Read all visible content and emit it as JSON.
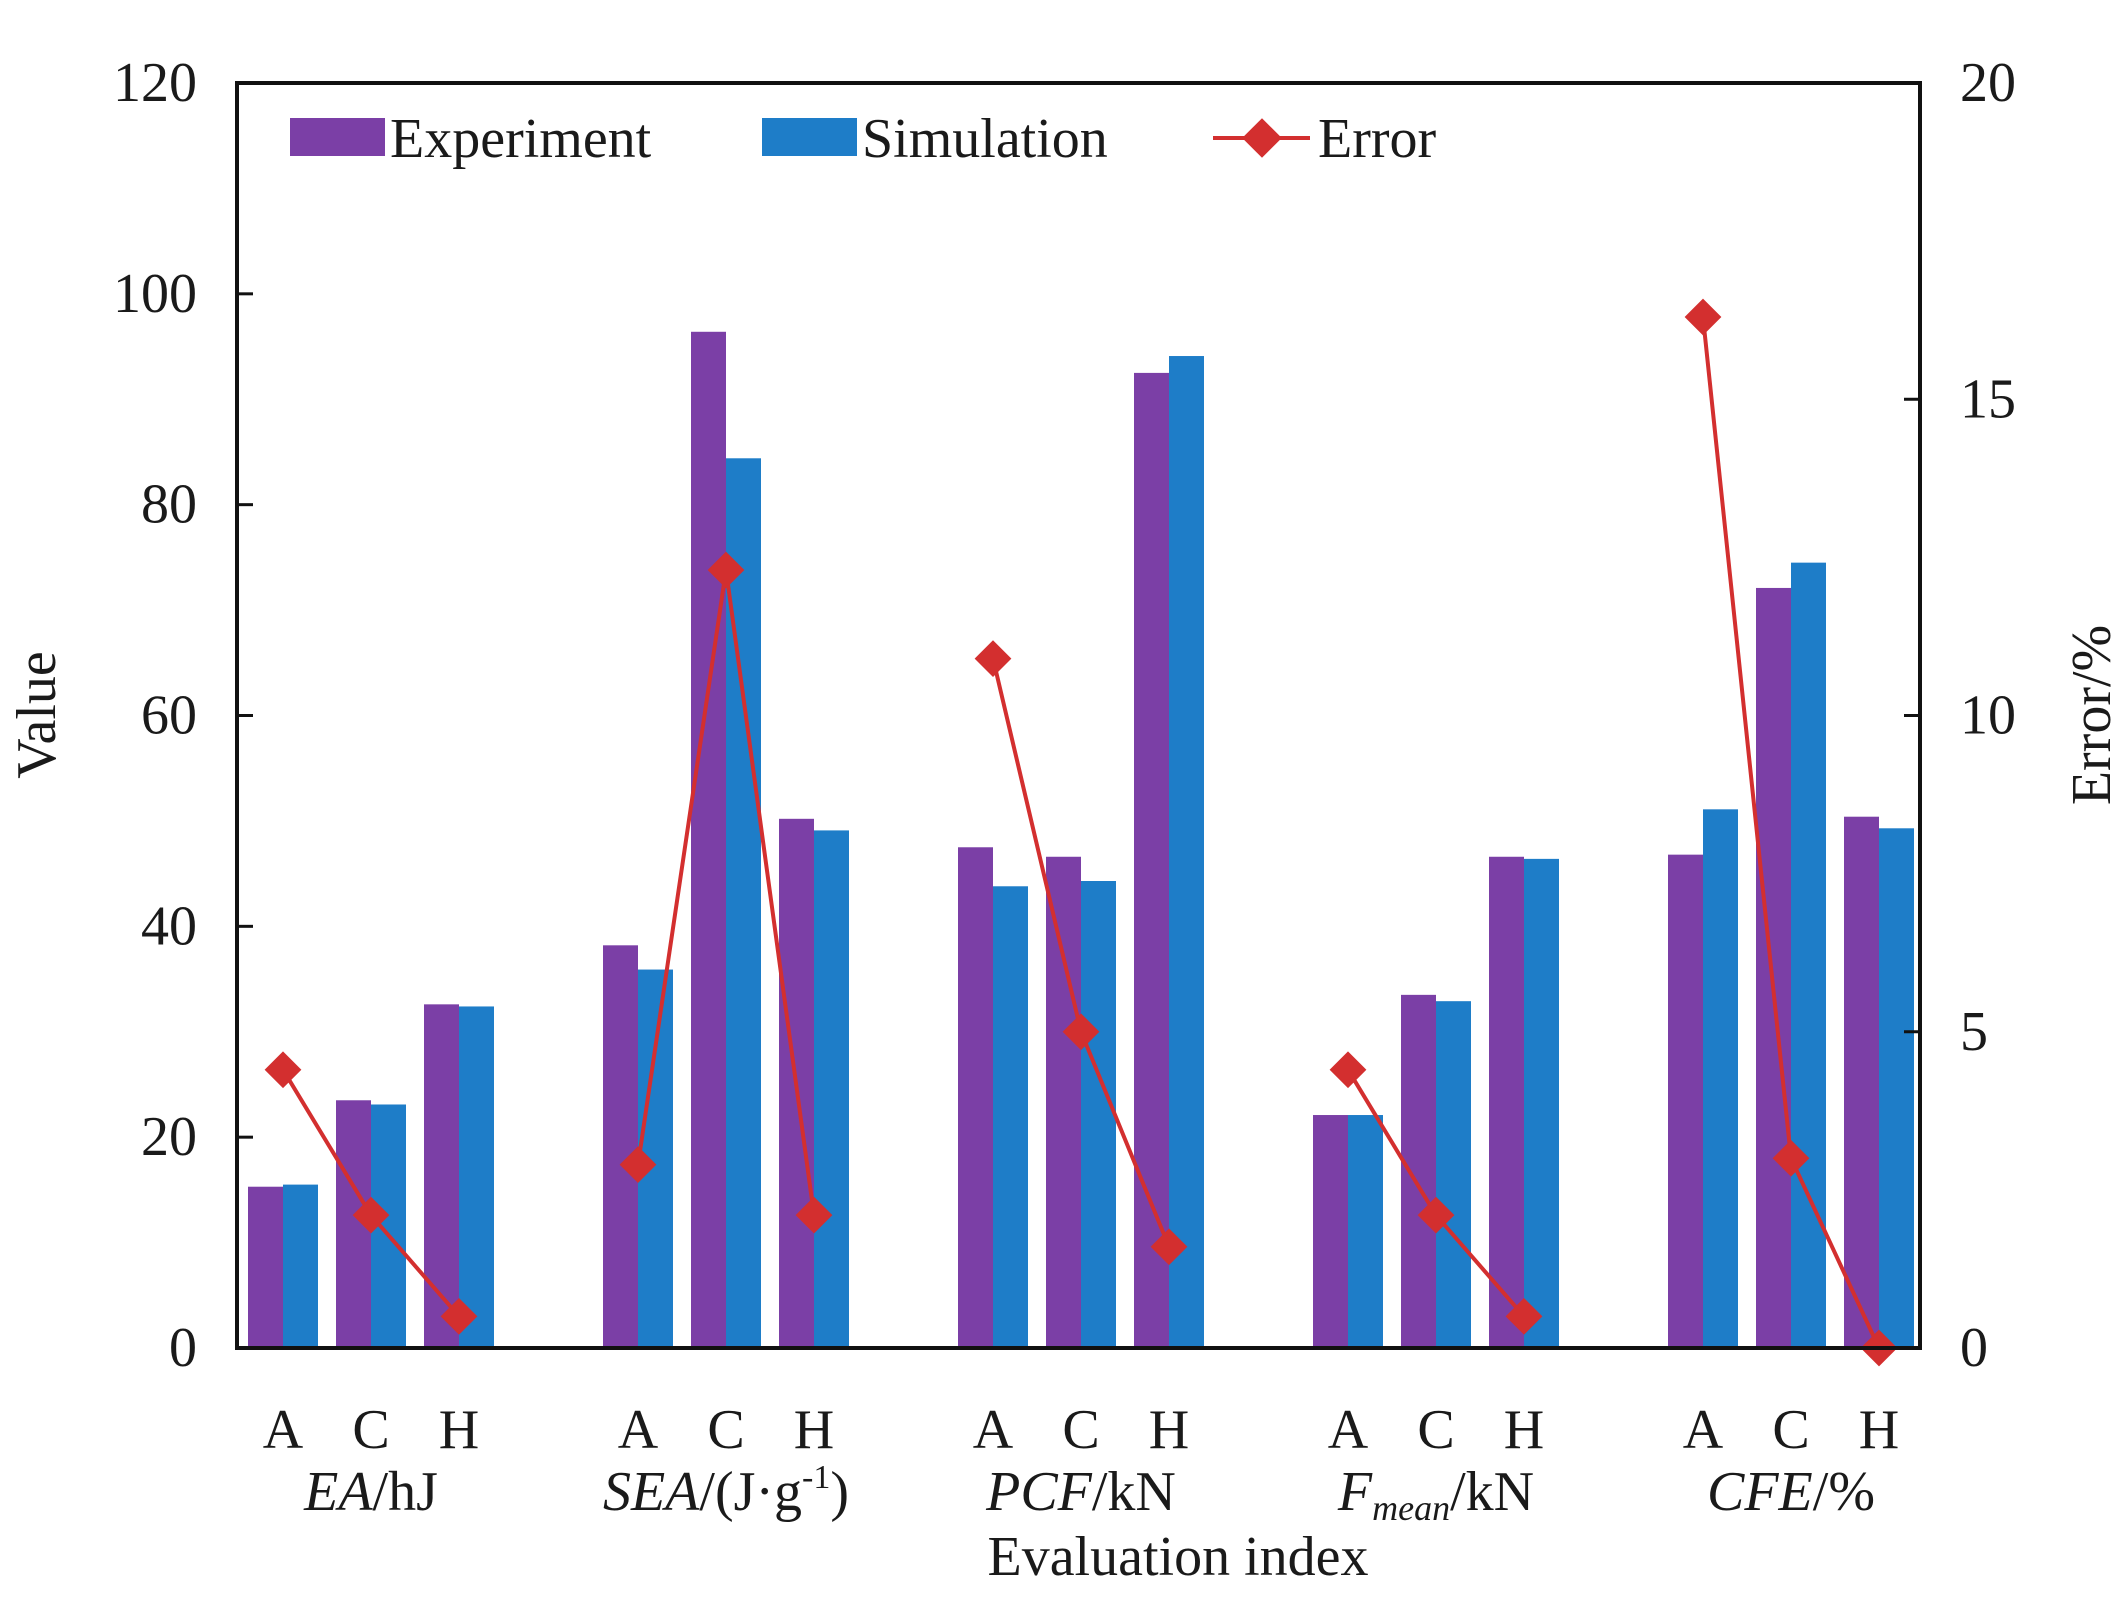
{
  "chart_data": {
    "type": "bar",
    "xlabel": "Evaluation index",
    "ylabel": "Value",
    "y2label": "Error/%",
    "ylim": [
      0,
      120
    ],
    "y2lim": [
      0,
      20
    ],
    "yticks": [
      0,
      20,
      40,
      60,
      80,
      100,
      120
    ],
    "y2ticks": [
      0,
      5,
      10,
      15,
      20
    ],
    "legend_position": "top",
    "legend": [
      "Experiment",
      "Simulation",
      "Error"
    ],
    "colors": {
      "Experiment": "#7B3FA6",
      "Simulation": "#1E7DC8",
      "Error": "#D32F2F"
    },
    "groups": [
      {
        "label_main": "EA",
        "label_suffix": "/hJ",
        "label_sub": "",
        "label_sup": "",
        "label_tail": "",
        "categories": [
          "A",
          "C",
          "H"
        ],
        "experiment": [
          15.3,
          23.5,
          32.6
        ],
        "simulation": [
          15.5,
          23.1,
          32.4
        ],
        "error": [
          4.4,
          2.1,
          0.5
        ]
      },
      {
        "label_main": "SEA",
        "label_suffix": "/(J·g",
        "label_sub": "",
        "label_sup": "-1",
        "label_tail": ")",
        "categories": [
          "A",
          "C",
          "H"
        ],
        "experiment": [
          38.2,
          96.4,
          50.2
        ],
        "simulation": [
          35.9,
          84.4,
          49.1
        ],
        "error": [
          2.9,
          12.3,
          2.1
        ]
      },
      {
        "label_main": "PCF",
        "label_suffix": "/kN",
        "label_sub": "",
        "label_sup": "",
        "label_tail": "",
        "categories": [
          "A",
          "C",
          "H"
        ],
        "experiment": [
          47.5,
          46.6,
          92.5
        ],
        "simulation": [
          43.8,
          44.3,
          94.1
        ],
        "error": [
          10.9,
          5.0,
          1.6
        ]
      },
      {
        "label_main": "F",
        "label_suffix": "/kN",
        "label_sub": "mean",
        "label_sup": "",
        "label_tail": "",
        "categories": [
          "A",
          "C",
          "H"
        ],
        "experiment": [
          22.1,
          33.5,
          46.6
        ],
        "simulation": [
          22.1,
          32.9,
          46.4
        ],
        "error": [
          4.4,
          2.1,
          0.5
        ]
      },
      {
        "label_main": "CFE",
        "label_suffix": "/%",
        "label_sub": "",
        "label_sup": "",
        "label_tail": "",
        "categories": [
          "A",
          "C",
          "H"
        ],
        "experiment": [
          46.8,
          72.1,
          50.4
        ],
        "simulation": [
          51.1,
          74.5,
          49.3
        ],
        "error": [
          16.3,
          3.0,
          0.0
        ]
      }
    ]
  }
}
